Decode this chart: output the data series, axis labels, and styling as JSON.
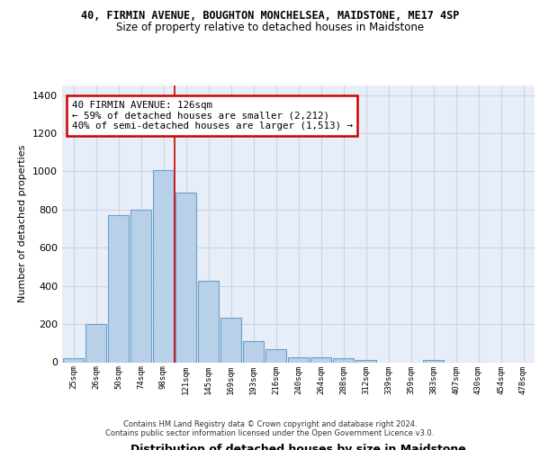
{
  "title1": "40, FIRMIN AVENUE, BOUGHTON MONCHELSEA, MAIDSTONE, ME17 4SP",
  "title2": "Size of property relative to detached houses in Maidstone",
  "xlabel": "Distribution of detached houses by size in Maidstone",
  "ylabel": "Number of detached properties",
  "bar_color": "#b8d0e8",
  "bar_edge_color": "#6aa0cc",
  "categories": [
    "25sqm",
    "26sqm",
    "50sqm",
    "74sqm",
    "98sqm",
    "121sqm",
    "145sqm",
    "169sqm",
    "193sqm",
    "216sqm",
    "240sqm",
    "264sqm",
    "288sqm",
    "312sqm",
    "339sqm",
    "359sqm",
    "383sqm",
    "407sqm",
    "430sqm",
    "454sqm",
    "478sqm"
  ],
  "values": [
    20,
    200,
    770,
    800,
    1005,
    890,
    425,
    235,
    110,
    70,
    25,
    25,
    20,
    10,
    0,
    0,
    12,
    0,
    0,
    0,
    0
  ],
  "annotation_text": "40 FIRMIN AVENUE: 126sqm\n← 59% of detached houses are smaller (2,212)\n40% of semi-detached houses are larger (1,513) →",
  "vline_x": 4.5,
  "vline_color": "#cc0000",
  "annotation_box_color": "#ffffff",
  "annotation_box_edge": "#cc0000",
  "ylim": [
    0,
    1450
  ],
  "yticks": [
    0,
    200,
    400,
    600,
    800,
    1000,
    1200,
    1400
  ],
  "grid_color": "#ccd4e4",
  "background_color": "#e8eef8",
  "footer1": "Contains HM Land Registry data © Crown copyright and database right 2024.",
  "footer2": "Contains public sector information licensed under the Open Government Licence v3.0."
}
